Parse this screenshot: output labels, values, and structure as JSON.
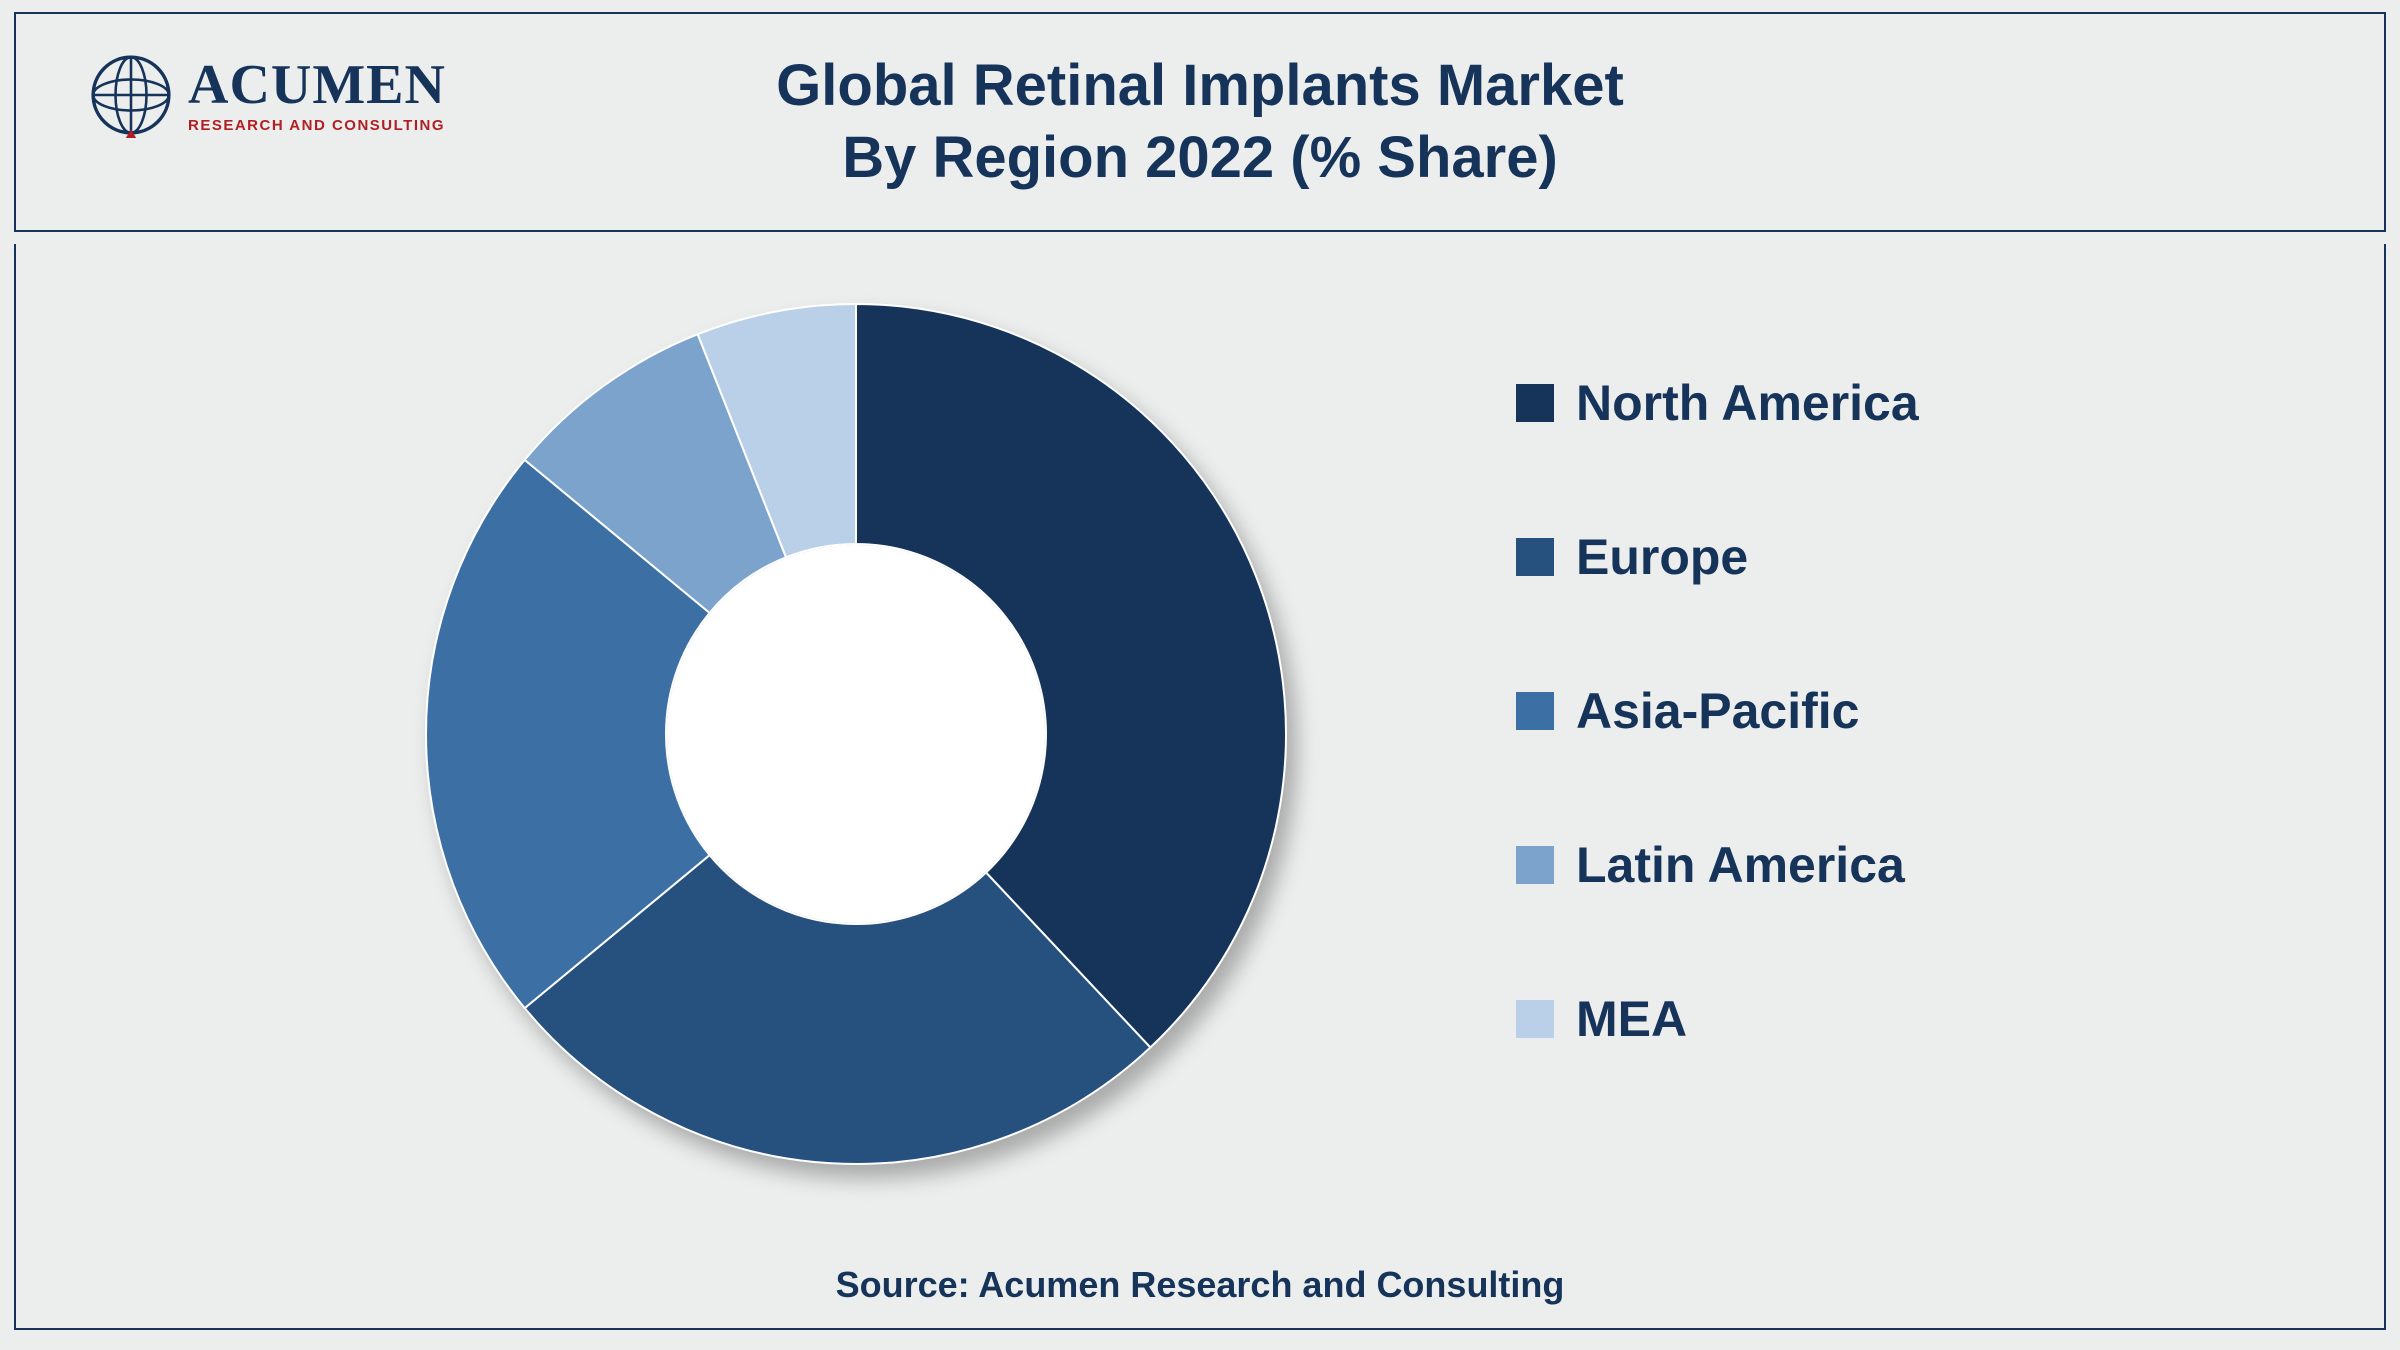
{
  "header": {
    "logo": {
      "name": "ACUMEN",
      "tagline": "RESEARCH AND CONSULTING",
      "globe_stroke": "#16335a",
      "globe_accent": "#b11f24"
    },
    "title_line1": "Global Retinal Implants Market",
    "title_line2": "By Region 2022 (% Share)",
    "title_color": "#16335a",
    "title_fontsize": 58,
    "border_color": "#16335a"
  },
  "chart": {
    "type": "donut",
    "outer_radius": 430,
    "inner_radius": 190,
    "center_fill": "#ffffff",
    "background_color": "#eceded",
    "start_angle_deg": -90,
    "shadow": true,
    "segments": [
      {
        "label": "North America",
        "value": 38,
        "color": "#16335a"
      },
      {
        "label": "Europe",
        "value": 26,
        "color": "#26517f"
      },
      {
        "label": "Asia-Pacific",
        "value": 22,
        "color": "#3c6fa3"
      },
      {
        "label": "Latin America",
        "value": 8,
        "color": "#7ba3cb"
      },
      {
        "label": "MEA",
        "value": 6,
        "color": "#b9d0e8"
      }
    ]
  },
  "legend": {
    "label_color": "#16335a",
    "label_fontsize": 50,
    "swatch_size": 38,
    "gap": 96
  },
  "source": {
    "text": "Source: Acumen Research and Consulting",
    "color": "#16335a",
    "fontsize": 36
  }
}
